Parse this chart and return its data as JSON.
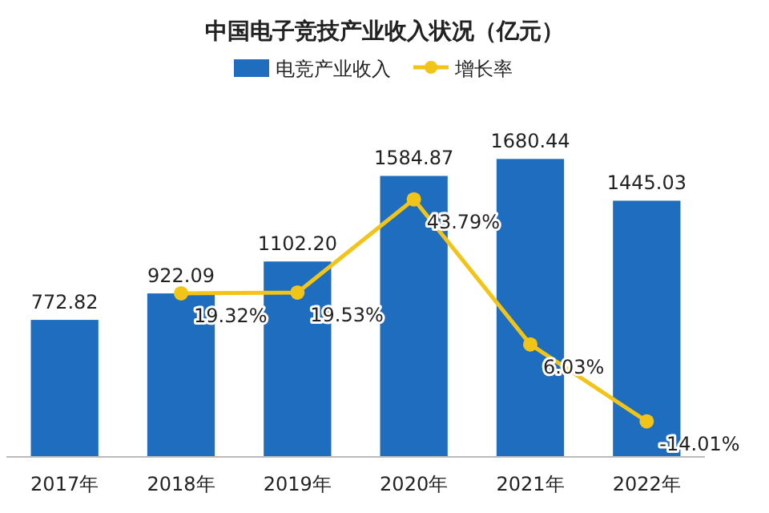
{
  "chart_data": {
    "type": "bar",
    "title": "中国电子竞技产业收入状况（亿元）",
    "categories": [
      "2017年",
      "2018年",
      "2019年",
      "2020年",
      "2021年",
      "2022年"
    ],
    "legend": "top",
    "series": [
      {
        "name": "电竞产业收入",
        "color": "#1f6dbf",
        "values": [
          772.82,
          922.09,
          1102.2,
          1584.87,
          1680.44,
          1445.03
        ],
        "value_labels": [
          "772.82",
          "922.09",
          "1102.20",
          "1584.87",
          "1680.44",
          "1445.03"
        ]
      },
      {
        "name": "增长率",
        "type": "line",
        "axis": "y2",
        "color": "#f2c418",
        "marker": "circle",
        "values": [
          null,
          19.32,
          19.53,
          43.79,
          6.03,
          -14.01
        ],
        "value_labels": [
          null,
          "19.32%",
          "19.53%",
          "43.79%",
          "6.03%",
          "-14.01%"
        ]
      }
    ]
  }
}
